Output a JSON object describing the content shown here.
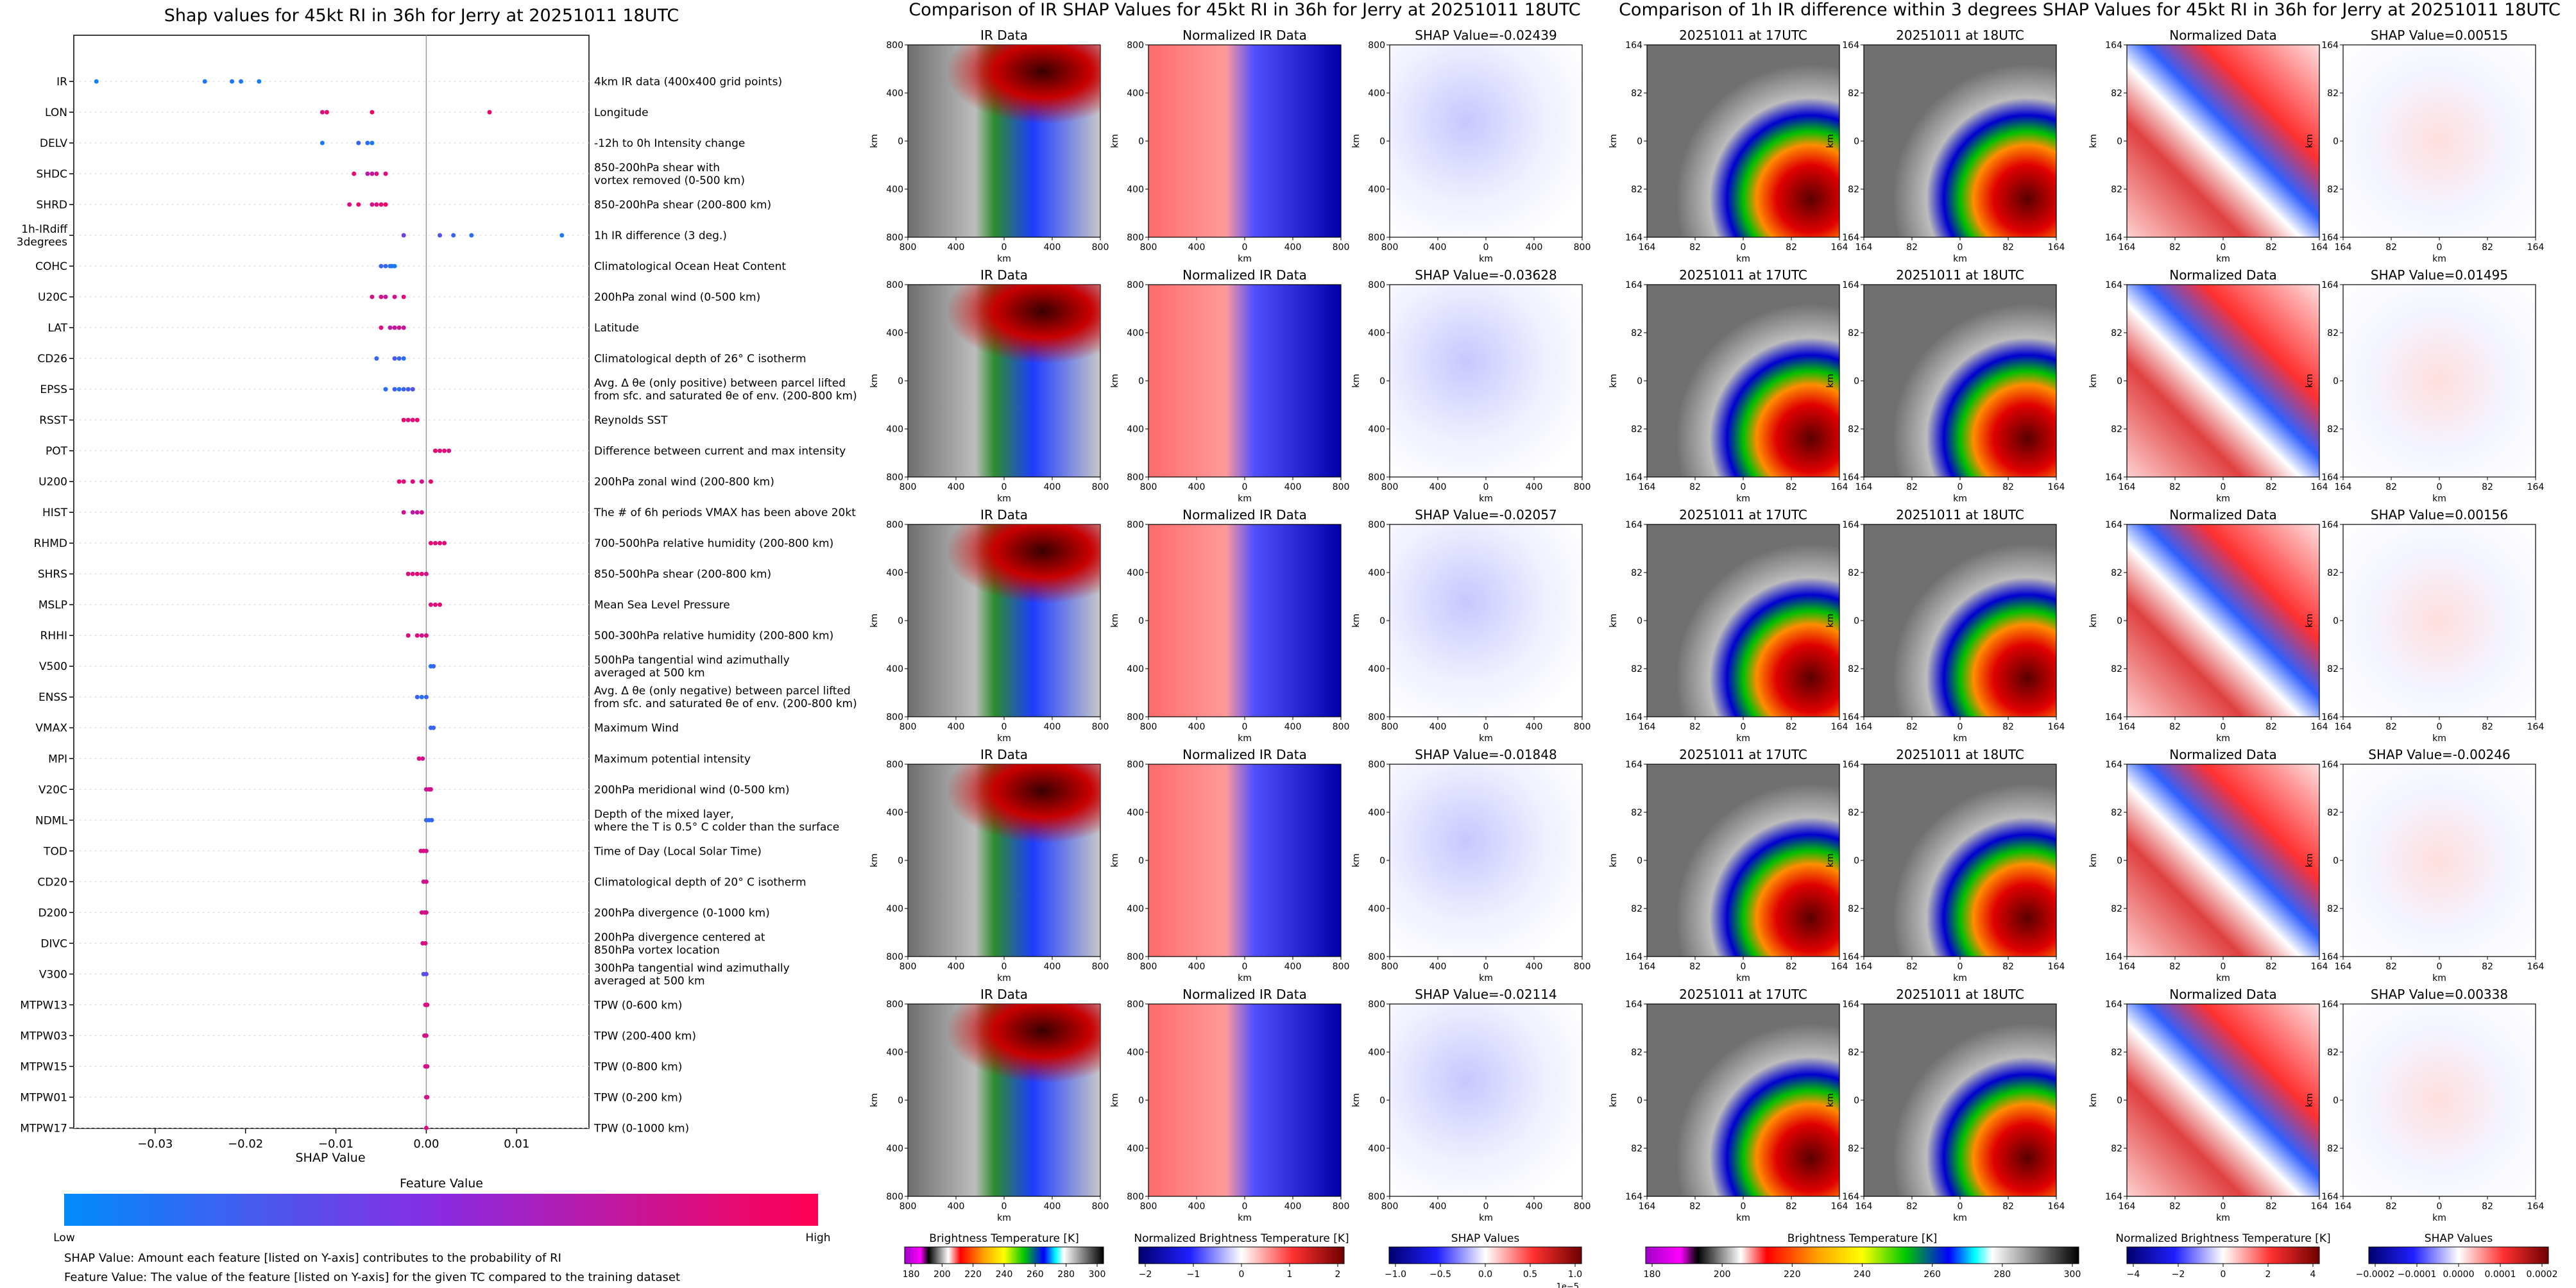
{
  "shap_panel": {
    "title": "Shap values for 45kt RI in 36h for Jerry at 20251011 18UTC",
    "xlabel": "SHAP Value",
    "colorbar_title": "Feature Value",
    "colorbar_low": "Low",
    "colorbar_high": "High",
    "legend_line1": "SHAP Value: Amount each feature [listed on Y-axis] contributes to the probability of RI",
    "legend_line2": "Feature Value: The value of the feature [listed on Y-axis] for the given TC compared to the training dataset"
  },
  "ir_grid": {
    "title": "Comparison of IR SHAP Values for 45kt RI in 36h for Jerry at 20251011 18UTC",
    "col_titles": [
      "IR Data",
      "Normalized IR Data"
    ],
    "shap_titles": [
      "SHAP Value=-0.02439",
      "SHAP Value=-0.03628",
      "SHAP Value=-0.02057",
      "SHAP Value=-0.01848",
      "SHAP Value=-0.02114"
    ],
    "axis_label": "km",
    "ticks": [
      "800",
      "400",
      "0",
      "400",
      "800"
    ],
    "colorbars": [
      {
        "label": "Brightness Temperature [K]",
        "ticks": [
          "180",
          "200",
          "220",
          "240",
          "260",
          "280",
          "300"
        ]
      },
      {
        "label": "Normalized Brightness Temperature [K]",
        "ticks": [
          "−2",
          "−1",
          "0",
          "1",
          "2"
        ]
      },
      {
        "label": "SHAP Values",
        "ticks": [
          "−1.0",
          "−0.5",
          "0.0",
          "0.5",
          "1.0"
        ],
        "offset": "1e−5"
      }
    ]
  },
  "diff_grid": {
    "title": "Comparison of 1h IR difference within 3 degrees SHAP Values for 45kt RI in 36h for Jerry at 20251011 18UTC",
    "col_titles": [
      "20251011 at 17UTC",
      "20251011 at 18UTC",
      "Normalized Data"
    ],
    "shap_titles": [
      "SHAP Value=0.00515",
      "SHAP Value=0.01495",
      "SHAP Value=0.00156",
      "SHAP Value=-0.00246",
      "SHAP Value=0.00338"
    ],
    "axis_label": "km",
    "ticks": [
      "164",
      "82",
      "0",
      "82",
      "164"
    ],
    "colorbars": [
      {
        "label": "Brightness Temperature [K]",
        "ticks": [
          "180",
          "200",
          "220",
          "240",
          "260",
          "280",
          "300"
        ]
      },
      {
        "label": "Normalized Brightness Temperature [K]",
        "ticks": [
          "−4",
          "−2",
          "0",
          "2",
          "4"
        ]
      },
      {
        "label": "SHAP Values",
        "ticks": [
          "−0.0002",
          "−0.0001",
          "0.0000",
          "0.0001",
          "0.0002"
        ]
      }
    ]
  },
  "colors": {
    "low": "#008bfb",
    "high": "#ff0052",
    "mid": "#8a2be2"
  },
  "chart_data": {
    "type": "scatter",
    "title": "Shap values for 45kt RI in 36h for Jerry at 20251011 18UTC",
    "xlabel": "SHAP Value",
    "xlim": [
      -0.039,
      0.018
    ],
    "xticks": [
      -0.03,
      -0.02,
      -0.01,
      0.0,
      0.01
    ],
    "xtick_labels": [
      "−0.03",
      "−0.02",
      "−0.01",
      "0.00",
      "0.01"
    ],
    "features": [
      {
        "name": "IR",
        "desc": "4km IR data (400x400 grid points)",
        "points": [
          [
            -0.0365,
            0.05
          ],
          [
            -0.0245,
            0.1
          ],
          [
            -0.0215,
            0.12
          ],
          [
            -0.0205,
            0.1
          ],
          [
            -0.0185,
            0.08
          ]
        ]
      },
      {
        "name": "LON",
        "desc": "Longitude",
        "points": [
          [
            -0.0115,
            0.85
          ],
          [
            -0.011,
            0.9
          ],
          [
            -0.006,
            0.95
          ],
          [
            0.007,
            0.9
          ]
        ]
      },
      {
        "name": "DELV",
        "desc": "-12h to 0h Intensity change",
        "points": [
          [
            -0.0115,
            0.1
          ],
          [
            -0.0075,
            0.2
          ],
          [
            -0.0065,
            0.15
          ],
          [
            -0.006,
            0.1
          ]
        ]
      },
      {
        "name": "SHDC",
        "desc": "850-200hPa shear with|vortex removed (0-500 km)",
        "points": [
          [
            -0.008,
            0.9
          ],
          [
            -0.0065,
            0.7
          ],
          [
            -0.006,
            0.75
          ],
          [
            -0.0055,
            0.8
          ],
          [
            -0.0045,
            0.85
          ]
        ]
      },
      {
        "name": "SHRD",
        "desc": "850-200hPa shear (200-800 km)",
        "points": [
          [
            -0.0085,
            0.85
          ],
          [
            -0.0075,
            0.9
          ],
          [
            -0.006,
            0.8
          ],
          [
            -0.0055,
            0.85
          ],
          [
            -0.005,
            0.9
          ],
          [
            -0.0045,
            0.95
          ]
        ]
      },
      {
        "name": "1h-IRdiff|3degrees",
        "desc": "1h IR difference (3 deg.)",
        "points": [
          [
            -0.0025,
            0.4
          ],
          [
            0.0015,
            0.3
          ],
          [
            0.003,
            0.2
          ],
          [
            0.005,
            0.15
          ],
          [
            0.015,
            0.1
          ]
        ]
      },
      {
        "name": "COHC",
        "desc": "Climatological Ocean Heat Content",
        "points": [
          [
            -0.005,
            0.2
          ],
          [
            -0.0045,
            0.2
          ],
          [
            -0.004,
            0.15
          ],
          [
            -0.0038,
            0.1
          ],
          [
            -0.0035,
            0.1
          ]
        ]
      },
      {
        "name": "U20C",
        "desc": "200hPa zonal wind (0-500 km)",
        "points": [
          [
            -0.006,
            0.85
          ],
          [
            -0.005,
            0.8
          ],
          [
            -0.0045,
            0.75
          ],
          [
            -0.0035,
            0.8
          ],
          [
            -0.0025,
            0.85
          ]
        ]
      },
      {
        "name": "LAT",
        "desc": "Latitude",
        "points": [
          [
            -0.005,
            0.85
          ],
          [
            -0.004,
            0.7
          ],
          [
            -0.0035,
            0.75
          ],
          [
            -0.003,
            0.8
          ],
          [
            -0.0025,
            0.75
          ]
        ]
      },
      {
        "name": "CD26",
        "desc": "Climatological depth of 26° C isotherm",
        "points": [
          [
            -0.0055,
            0.2
          ],
          [
            -0.0035,
            0.25
          ],
          [
            -0.003,
            0.2
          ],
          [
            -0.0025,
            0.15
          ]
        ]
      },
      {
        "name": "EPSS",
        "desc": "Avg. Δ θe (only positive) between parcel lifted|from sfc. and saturated θe of env. (200-800 km)",
        "points": [
          [
            -0.0045,
            0.15
          ],
          [
            -0.0035,
            0.2
          ],
          [
            -0.003,
            0.15
          ],
          [
            -0.0025,
            0.2
          ],
          [
            -0.002,
            0.25
          ],
          [
            -0.0015,
            0.3
          ]
        ]
      },
      {
        "name": "RSST",
        "desc": "Reynolds SST",
        "points": [
          [
            -0.0025,
            0.9
          ],
          [
            -0.002,
            0.85
          ],
          [
            -0.0015,
            0.85
          ],
          [
            -0.001,
            0.9
          ]
        ]
      },
      {
        "name": "POT",
        "desc": "Difference between current and max intensity",
        "points": [
          [
            0.001,
            0.9
          ],
          [
            0.0015,
            0.85
          ],
          [
            0.002,
            0.85
          ],
          [
            0.0025,
            0.8
          ]
        ]
      },
      {
        "name": "U200",
        "desc": "200hPa zonal wind (200-800 km)",
        "points": [
          [
            -0.003,
            0.9
          ],
          [
            -0.0025,
            0.85
          ],
          [
            -0.0015,
            0.85
          ],
          [
            -0.0005,
            0.8
          ],
          [
            0.0005,
            0.9
          ]
        ]
      },
      {
        "name": "HIST",
        "desc": "The # of 6h periods VMAX has been above 20kt",
        "points": [
          [
            -0.0025,
            0.8
          ],
          [
            -0.0015,
            0.7
          ],
          [
            -0.001,
            0.75
          ],
          [
            -0.0005,
            0.8
          ]
        ]
      },
      {
        "name": "RHMD",
        "desc": "700-500hPa relative humidity (200-800 km)",
        "points": [
          [
            0.0005,
            0.9
          ],
          [
            0.001,
            0.85
          ],
          [
            0.0015,
            0.9
          ],
          [
            0.002,
            0.85
          ]
        ]
      },
      {
        "name": "SHRS",
        "desc": "850-500hPa shear (200-800 km)",
        "points": [
          [
            -0.002,
            0.85
          ],
          [
            -0.0015,
            0.85
          ],
          [
            -0.001,
            0.9
          ],
          [
            -0.0005,
            0.85
          ],
          [
            0.0,
            0.8
          ]
        ]
      },
      {
        "name": "MSLP",
        "desc": "Mean Sea Level Pressure",
        "points": [
          [
            0.0005,
            0.85
          ],
          [
            0.001,
            0.85
          ],
          [
            0.0015,
            0.9
          ]
        ]
      },
      {
        "name": "RHHI",
        "desc": "500-300hPa relative humidity (200-800 km)",
        "points": [
          [
            -0.002,
            0.85
          ],
          [
            -0.001,
            0.85
          ],
          [
            -0.0005,
            0.8
          ],
          [
            0.0,
            0.85
          ]
        ]
      },
      {
        "name": "V500",
        "desc": "500hPa tangential wind azimuthally|averaged at 500 km",
        "points": [
          [
            0.0005,
            0.15
          ],
          [
            0.0008,
            0.2
          ]
        ]
      },
      {
        "name": "ENSS",
        "desc": "Avg. Δ θe (only negative) between parcel lifted|from sfc. and saturated θe of env. (200-800 km)",
        "points": [
          [
            -0.001,
            0.2
          ],
          [
            -0.0005,
            0.15
          ],
          [
            0.0,
            0.2
          ]
        ]
      },
      {
        "name": "VMAX",
        "desc": "Maximum Wind",
        "points": [
          [
            0.0005,
            0.2
          ],
          [
            0.0008,
            0.2
          ]
        ]
      },
      {
        "name": "MPI",
        "desc": "Maximum potential intensity",
        "points": [
          [
            -0.0008,
            0.85
          ],
          [
            -0.0004,
            0.8
          ]
        ]
      },
      {
        "name": "V20C",
        "desc": "200hPa meridional wind (0-500 km)",
        "points": [
          [
            0.0,
            0.8
          ],
          [
            0.0003,
            0.75
          ],
          [
            0.0005,
            0.8
          ]
        ]
      },
      {
        "name": "NDML",
        "desc": "Depth of the mixed layer,|where the T is 0.5° C colder than the surface",
        "points": [
          [
            0.0,
            0.2
          ],
          [
            0.0003,
            0.15
          ],
          [
            0.0006,
            0.2
          ]
        ]
      },
      {
        "name": "TOD",
        "desc": "Time of Day (Local Solar Time)",
        "points": [
          [
            -0.0006,
            0.8
          ],
          [
            -0.0003,
            0.85
          ],
          [
            0.0,
            0.8
          ]
        ]
      },
      {
        "name": "CD20",
        "desc": "Climatological depth of 20° C isotherm",
        "points": [
          [
            -0.0003,
            0.8
          ],
          [
            0.0,
            0.8
          ]
        ]
      },
      {
        "name": "D200",
        "desc": "200hPa divergence (0-1000 km)",
        "points": [
          [
            -0.0005,
            0.85
          ],
          [
            -0.0002,
            0.8
          ],
          [
            0.0,
            0.8
          ]
        ]
      },
      {
        "name": "DIVC",
        "desc": "200hPa divergence centered at|850hPa vortex location",
        "points": [
          [
            -0.0004,
            0.8
          ],
          [
            -0.0001,
            0.85
          ]
        ]
      },
      {
        "name": "V300",
        "desc": "300hPa tangential wind azimuthally|averaged at 500 km",
        "points": [
          [
            -0.0003,
            0.3
          ],
          [
            0.0,
            0.35
          ]
        ]
      },
      {
        "name": "MTPW13",
        "desc": "TPW (0-600 km)",
        "points": [
          [
            -0.0001,
            0.8
          ],
          [
            0.0001,
            0.85
          ]
        ]
      },
      {
        "name": "MTPW03",
        "desc": "TPW (200-400 km)",
        "points": [
          [
            -0.0002,
            0.85
          ],
          [
            0.0,
            0.8
          ]
        ]
      },
      {
        "name": "MTPW15",
        "desc": "TPW (0-800 km)",
        "points": [
          [
            -0.0001,
            0.85
          ],
          [
            0.0001,
            0.8
          ]
        ]
      },
      {
        "name": "MTPW01",
        "desc": "TPW (0-200 km)",
        "points": [
          [
            0.0,
            0.85
          ],
          [
            0.0001,
            0.8
          ]
        ]
      },
      {
        "name": "MTPW17",
        "desc": "TPW (0-1000 km)",
        "points": [
          [
            0.0,
            0.85
          ]
        ]
      }
    ]
  }
}
